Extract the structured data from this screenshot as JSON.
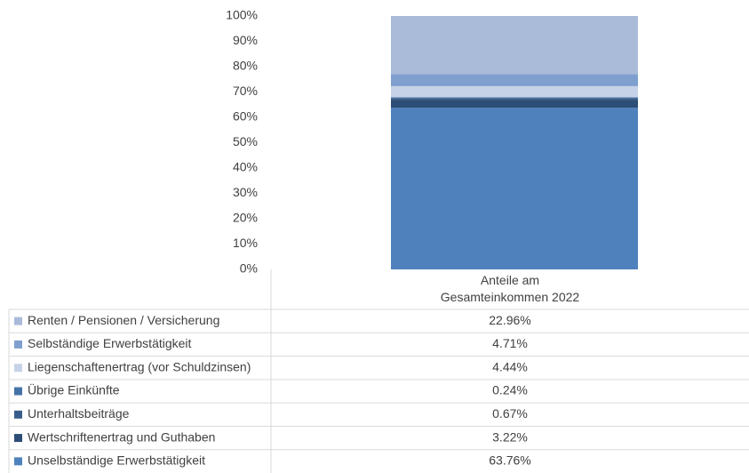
{
  "chart_data": {
    "type": "stacked_bar",
    "categories": [
      "Anteile am Gesamteinkommen 2022"
    ],
    "series": [
      {
        "name": "Unselbständige Erwerbstätigkeit",
        "color": "#4f81bd",
        "values": [
          63.76
        ],
        "value_labels": [
          "63.76%"
        ]
      },
      {
        "name": "Wertschriftenertrag und Guthaben",
        "color": "#2c4d75",
        "values": [
          3.22
        ],
        "value_labels": [
          "3.22%"
        ]
      },
      {
        "name": "Unterhaltsbeiträge",
        "color": "#385d8a",
        "values": [
          0.67
        ],
        "value_labels": [
          "0.67%"
        ]
      },
      {
        "name": "Übrige Einkünfte",
        "color": "#4572a7",
        "values": [
          0.24
        ],
        "value_labels": [
          "0.24%"
        ]
      },
      {
        "name": "Liegenschaftenertrag (vor Schuldzinsen)",
        "color": "#c6d2e7",
        "values": [
          4.44
        ],
        "value_labels": [
          "4.44%"
        ]
      },
      {
        "name": "Selbständige Erwerbstätigkeit",
        "color": "#7f9fcf",
        "values": [
          4.71
        ],
        "value_labels": [
          "4.71%"
        ]
      },
      {
        "name": "Renten / Pensionen / Versicherung",
        "color": "#aabad9",
        "values": [
          22.96
        ],
        "value_labels": [
          "22.96%"
        ]
      }
    ],
    "ylim": [
      0,
      100
    ],
    "yticks": [
      {
        "value": 0,
        "label": "0%"
      },
      {
        "value": 10,
        "label": "10%"
      },
      {
        "value": 20,
        "label": "20%"
      },
      {
        "value": 30,
        "label": "30%"
      },
      {
        "value": 40,
        "label": "40%"
      },
      {
        "value": 50,
        "label": "50%"
      },
      {
        "value": 60,
        "label": "60%"
      },
      {
        "value": 70,
        "label": "70%"
      },
      {
        "value": 80,
        "label": "80%"
      },
      {
        "value": 90,
        "label": "90%"
      },
      {
        "value": 100,
        "label": "100%"
      }
    ],
    "grid": false
  }
}
